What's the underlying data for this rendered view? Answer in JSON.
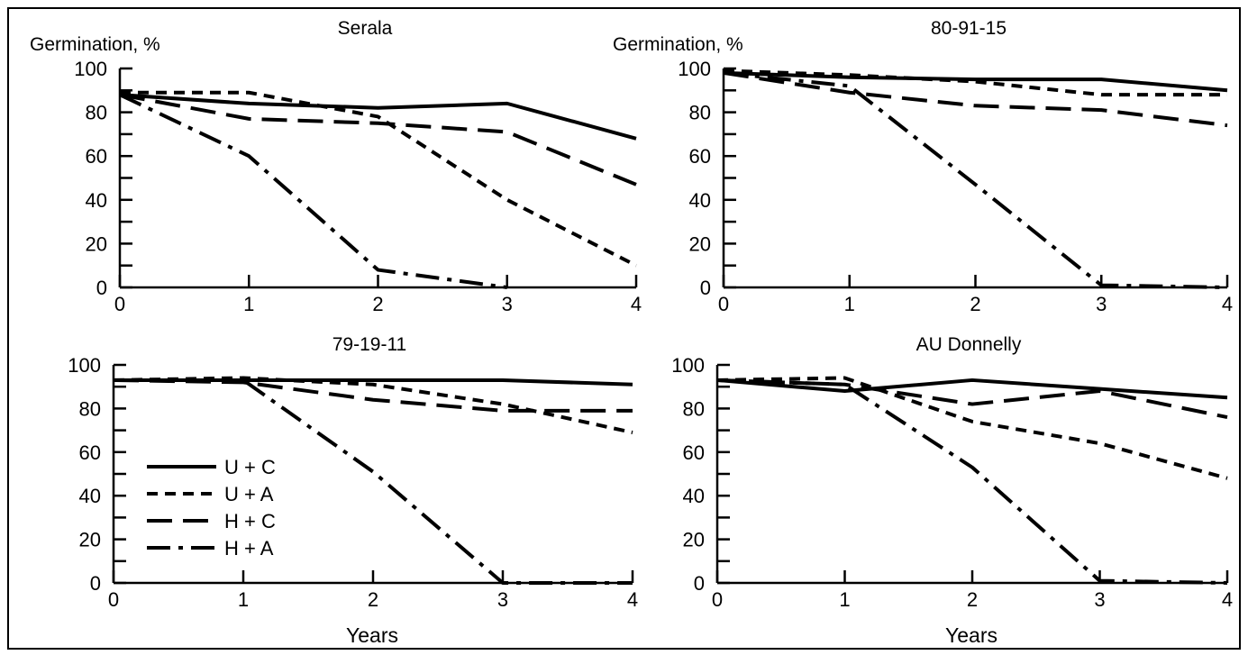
{
  "ylabel": "Germination, %",
  "xlabel": "Years",
  "legend": [
    {
      "name": "U + C",
      "style": "solid"
    },
    {
      "name": "U + A",
      "style": "dotted"
    },
    {
      "name": "H + C",
      "style": "dashed"
    },
    {
      "name": "H + A",
      "style": "dashdot"
    }
  ],
  "chart_data": [
    {
      "type": "line",
      "title": "Serala",
      "ylabel": "Germination, %",
      "xlabel": "",
      "xlim": [
        0,
        4
      ],
      "ylim": [
        0,
        100
      ],
      "x_ticks": [
        0,
        1,
        2,
        3,
        4
      ],
      "y_ticks": [
        0,
        20,
        40,
        60,
        80,
        100
      ],
      "x": [
        0,
        1,
        2,
        3,
        4
      ],
      "series": [
        {
          "name": "U + C",
          "style": "solid",
          "values": [
            88,
            84,
            82,
            84,
            68
          ]
        },
        {
          "name": "U + A",
          "style": "dotted",
          "values": [
            89,
            89,
            78,
            40,
            10
          ]
        },
        {
          "name": "H + C",
          "style": "dashed",
          "values": [
            88,
            77,
            75,
            71,
            47
          ]
        },
        {
          "name": "H + A",
          "style": "dashdot",
          "values": [
            88,
            60,
            8,
            0,
            null
          ]
        }
      ]
    },
    {
      "type": "line",
      "title": "80-91-15",
      "ylabel": "Germination, %",
      "xlabel": "",
      "xlim": [
        0,
        4
      ],
      "ylim": [
        0,
        100
      ],
      "x_ticks": [
        0,
        1,
        2,
        3,
        4
      ],
      "y_ticks": [
        0,
        20,
        40,
        60,
        80,
        100
      ],
      "x": [
        0,
        1,
        2,
        3,
        4
      ],
      "series": [
        {
          "name": "U + C",
          "style": "solid",
          "values": [
            98,
            96,
            95,
            95,
            90
          ]
        },
        {
          "name": "U + A",
          "style": "dotted",
          "values": [
            99,
            97,
            94,
            88,
            88
          ]
        },
        {
          "name": "H + C",
          "style": "dashed",
          "values": [
            98,
            89,
            83,
            81,
            74
          ]
        },
        {
          "name": "H + A",
          "style": "dashdot",
          "values": [
            98,
            92,
            47,
            1,
            0
          ]
        }
      ]
    },
    {
      "type": "line",
      "title": "79-19-11",
      "ylabel": "",
      "xlabel": "Years",
      "xlim": [
        0,
        4
      ],
      "ylim": [
        0,
        100
      ],
      "x_ticks": [
        0,
        1,
        2,
        3,
        4
      ],
      "y_ticks": [
        0,
        20,
        40,
        60,
        80,
        100
      ],
      "x": [
        0,
        1,
        2,
        3,
        4
      ],
      "series": [
        {
          "name": "U + C",
          "style": "solid",
          "values": [
            93,
            93,
            93,
            93,
            91
          ]
        },
        {
          "name": "U + A",
          "style": "dotted",
          "values": [
            93,
            94,
            91,
            82,
            69
          ]
        },
        {
          "name": "H + C",
          "style": "dashed",
          "values": [
            93,
            92,
            84,
            79,
            79
          ]
        },
        {
          "name": "H + A",
          "style": "dashdot",
          "values": [
            93,
            93,
            51,
            0,
            0
          ]
        }
      ]
    },
    {
      "type": "line",
      "title": "AU Donnelly",
      "ylabel": "",
      "xlabel": "Years",
      "xlim": [
        0,
        4
      ],
      "ylim": [
        0,
        100
      ],
      "x_ticks": [
        0,
        1,
        2,
        3,
        4
      ],
      "y_ticks": [
        0,
        20,
        40,
        60,
        80,
        100
      ],
      "x": [
        0,
        1,
        2,
        3,
        4
      ],
      "series": [
        {
          "name": "U + C",
          "style": "solid",
          "values": [
            93,
            88,
            93,
            89,
            85
          ]
        },
        {
          "name": "U + A",
          "style": "dotted",
          "values": [
            93,
            94,
            74,
            64,
            48
          ]
        },
        {
          "name": "H + C",
          "style": "dashed",
          "values": [
            93,
            91,
            82,
            88,
            76
          ]
        },
        {
          "name": "H + A",
          "style": "dashdot",
          "values": [
            93,
            91,
            53,
            1,
            0
          ]
        }
      ]
    }
  ]
}
